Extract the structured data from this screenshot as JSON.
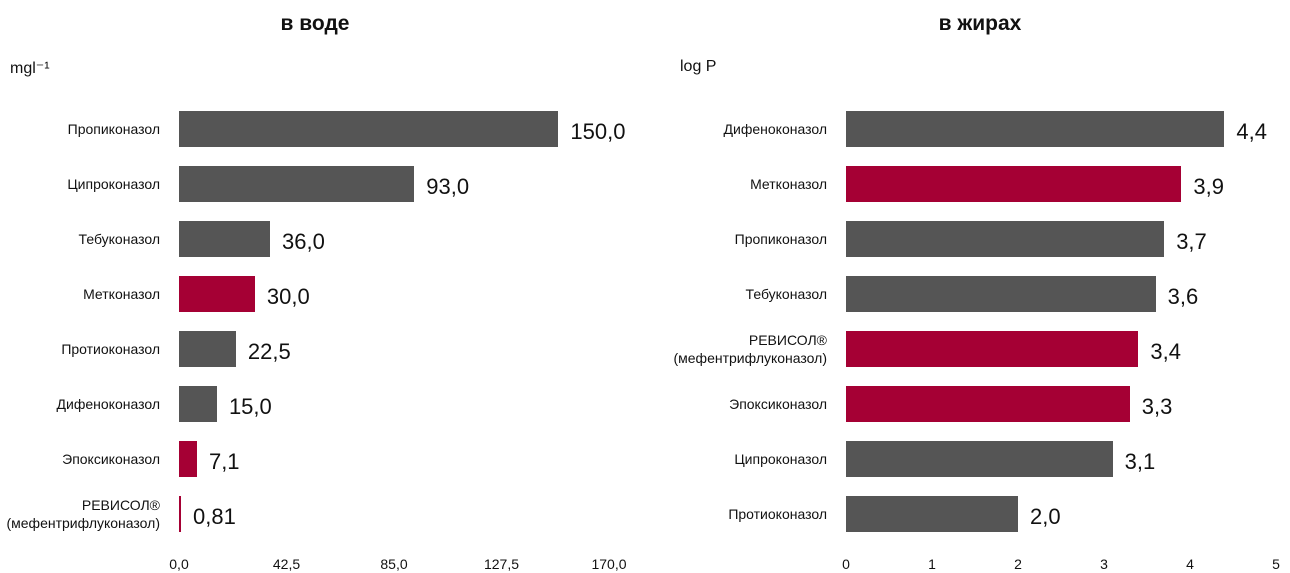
{
  "chart_data": [
    {
      "type": "bar",
      "orientation": "horizontal",
      "title": "в воде",
      "axis_label": "mgl⁻¹",
      "categories": [
        "Пропиконазол",
        "Ципроконазол",
        "Тебуконазол",
        "Метконазол",
        "Протиоконазол",
        "Дифеноконазол",
        "Эпоксиконазол",
        "РЕВИСОЛ®\n(мефентрифлуконазол)"
      ],
      "values": [
        150.0,
        93.0,
        36.0,
        30.0,
        22.5,
        15.0,
        7.1,
        0.81
      ],
      "value_labels": [
        "150,0",
        "93,0",
        "36,0",
        "30,0",
        "22,5",
        "15,0",
        "7,1",
        "0,81"
      ],
      "colors": [
        "#555555",
        "#555555",
        "#555555",
        "#a50034",
        "#555555",
        "#555555",
        "#a50034",
        "#a50034"
      ],
      "xlim": [
        0,
        170
      ],
      "xticks": [
        {
          "value": 0,
          "label": "0,0"
        },
        {
          "value": 42.5,
          "label": "42,5"
        },
        {
          "value": 85,
          "label": "85,0"
        },
        {
          "value": 127.5,
          "label": "127,5"
        },
        {
          "value": 170,
          "label": "170,0"
        }
      ]
    },
    {
      "type": "bar",
      "orientation": "horizontal",
      "title": "в жирах",
      "axis_label": "log P",
      "categories": [
        "Дифеноконазол",
        "Метконазол",
        "Пропиконазол",
        "Тебуконазол",
        "РЕВИСОЛ®\n(мефентрифлуконазол)",
        "Эпоксиконазол",
        "Ципроконазол",
        "Протиоконазол"
      ],
      "values": [
        4.4,
        3.9,
        3.7,
        3.6,
        3.4,
        3.3,
        3.1,
        2.0
      ],
      "value_labels": [
        "4,4",
        "3,9",
        "3,7",
        "3,6",
        "3,4",
        "3,3",
        "3,1",
        "2,0"
      ],
      "colors": [
        "#555555",
        "#a50034",
        "#555555",
        "#555555",
        "#a50034",
        "#a50034",
        "#555555",
        "#555555"
      ],
      "xlim": [
        0,
        5
      ],
      "xticks": [
        0,
        1,
        2,
        3,
        4,
        5
      ]
    }
  ]
}
